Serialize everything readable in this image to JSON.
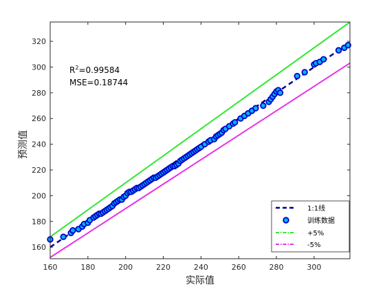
{
  "chart_data": {
    "type": "scatter",
    "xlabel": "实际值",
    "ylabel": "预测值",
    "xlim": [
      160,
      319
    ],
    "ylim": [
      151,
      335
    ],
    "xticks": [
      160,
      180,
      200,
      220,
      240,
      260,
      280,
      300
    ],
    "yticks": [
      160,
      180,
      200,
      220,
      240,
      260,
      280,
      300,
      320
    ],
    "grid": false,
    "legend_position": "bottom-right",
    "annotations": {
      "r2_label": "R",
      "r2_sup": "2",
      "r2_value": "=0.99584",
      "mse": "MSE=0.18744"
    },
    "colors": {
      "fit_line": "#00008b",
      "marker_fill": "#00b4f0",
      "marker_edge": "#0000cd",
      "plus5": "#32e632",
      "minus5": "#e632e6"
    },
    "series": [
      {
        "name": "1:1线",
        "kind": "line",
        "style": "dashed",
        "x": [
          160,
          319
        ],
        "y": [
          160,
          319
        ]
      },
      {
        "name": "训练数据",
        "kind": "scatter",
        "x": [
          160,
          167,
          171,
          172,
          175,
          177,
          178,
          180,
          181,
          183,
          184,
          185,
          186,
          187,
          188,
          189,
          190,
          191,
          192,
          193,
          194,
          195,
          196,
          197,
          198,
          199,
          200,
          201,
          202,
          203,
          204,
          205,
          206,
          207,
          208,
          209,
          210,
          211,
          212,
          213,
          214,
          215,
          216,
          217,
          218,
          219,
          220,
          221,
          222,
          223,
          224,
          225,
          226,
          227,
          228,
          229,
          230,
          231,
          232,
          233,
          234,
          235,
          236,
          237,
          238,
          239,
          240,
          242,
          244,
          245,
          247,
          248,
          249,
          250,
          251,
          252,
          253,
          255,
          257,
          258,
          261,
          263,
          265,
          267,
          269,
          273,
          276,
          277,
          278,
          279,
          280,
          281,
          282,
          291,
          295,
          300,
          301,
          303,
          305,
          313,
          316,
          318
        ],
        "y": [
          166,
          168,
          171,
          173,
          174,
          176,
          178,
          179,
          181,
          183,
          184,
          185,
          186,
          186,
          187,
          188,
          189,
          190,
          191,
          192,
          194,
          195,
          196,
          197,
          197,
          199,
          200,
          202,
          203,
          203,
          204,
          205,
          206,
          206,
          207,
          208,
          209,
          210,
          211,
          212,
          213,
          214,
          214,
          215,
          216,
          217,
          218,
          219,
          220,
          221,
          222,
          223,
          223,
          224,
          225,
          227,
          228,
          229,
          230,
          231,
          232,
          233,
          234,
          235,
          236,
          237,
          238,
          240,
          242,
          243,
          244,
          246,
          247,
          248,
          249,
          251,
          252,
          254,
          256,
          257,
          260,
          262,
          264,
          266,
          268,
          270,
          273,
          275,
          277,
          279,
          281,
          282,
          280,
          293,
          296,
          302,
          303,
          304,
          306,
          313,
          315,
          317
        ]
      },
      {
        "name": "+5%",
        "kind": "line",
        "style": "solid",
        "x": [
          160,
          319
        ],
        "y": [
          168,
          334.95
        ]
      },
      {
        "name": "-5%",
        "kind": "line",
        "style": "solid",
        "x": [
          160,
          319
        ],
        "y": [
          152,
          303.05
        ]
      }
    ]
  }
}
